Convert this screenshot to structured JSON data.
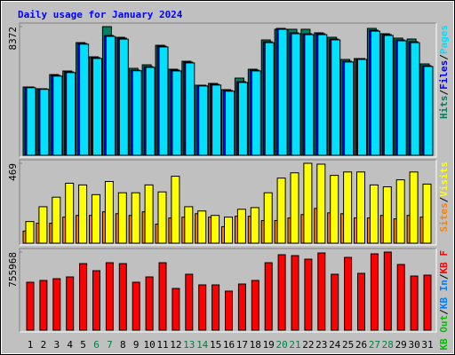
{
  "chart_data": [
    {
      "type": "bar",
      "title": "Daily usage for January 2024",
      "categories": [
        "1",
        "2",
        "3",
        "4",
        "5",
        "6",
        "7",
        "8",
        "9",
        "10",
        "11",
        "12",
        "13",
        "14",
        "15",
        "16",
        "17",
        "18",
        "19",
        "20",
        "21",
        "22",
        "23",
        "24",
        "25",
        "26",
        "27",
        "28",
        "29",
        "30",
        "31"
      ],
      "category_colors": [
        "#000000",
        "#000000",
        "#000000",
        "#000000",
        "#000000",
        "#008040",
        "#008040",
        "#000000",
        "#000000",
        "#000000",
        "#000000",
        "#000000",
        "#008040",
        "#008040",
        "#000000",
        "#000000",
        "#000000",
        "#000000",
        "#000000",
        "#008040",
        "#008040",
        "#000000",
        "#000000",
        "#000000",
        "#000000",
        "#000000",
        "#008040",
        "#008040",
        "#000000",
        "#000000",
        "#000000"
      ],
      "legend_separator": "/",
      "ylim": [
        0,
        8372
      ],
      "yticks": [
        8372
      ],
      "series": [
        {
          "name": "Pages",
          "color": "#00e0ff",
          "values": [
            4400,
            4290,
            5150,
            5380,
            7230,
            6300,
            7740,
            7560,
            5500,
            5720,
            7050,
            5490,
            6010,
            4510,
            4570,
            4170,
            4740,
            5490,
            7330,
            8200,
            7910,
            7850,
            7850,
            7510,
            6070,
            6240,
            8080,
            7800,
            7450,
            7330,
            5780
          ]
        },
        {
          "name": "Files",
          "color": "#0000ff",
          "values": [
            4446,
            4331,
            5196,
            5427,
            7275,
            6352,
            7795,
            7622,
            5543,
            5774,
            7102,
            5543,
            6063,
            4561,
            4619,
            4215,
            4792,
            5543,
            7391,
            8257,
            7968,
            7910,
            7910,
            7564,
            6120,
            6294,
            8141,
            7853,
            7506,
            7391,
            5831
          ]
        },
        {
          "name": "Hits",
          "color": "#008060",
          "values": [
            4446,
            4331,
            5254,
            5485,
            7333,
            6409,
            8372,
            7679,
            5658,
            5889,
            7159,
            5601,
            6120,
            4561,
            4677,
            4273,
            5023,
            5601,
            7506,
            8200,
            8200,
            8200,
            7968,
            7679,
            6236,
            6294,
            8257,
            7910,
            7622,
            7564,
            5947
          ]
        }
      ]
    },
    {
      "type": "bar",
      "legend_separator": "/",
      "ylim": [
        0,
        469
      ],
      "yticks": [
        469
      ],
      "series": [
        {
          "name": "Visits",
          "color": "#ffff00",
          "values": [
            127,
            214,
            270,
            352,
            342,
            285,
            362,
            296,
            296,
            342,
            301,
            393,
            214,
            189,
            163,
            153,
            199,
            209,
            296,
            382,
            413,
            469,
            464,
            398,
            418,
            418,
            342,
            331,
            372,
            418,
            347
          ]
        },
        {
          "name": "Sites",
          "color": "#ff8000",
          "values": [
            71,
            117,
            117,
            153,
            163,
            163,
            184,
            173,
            163,
            184,
            112,
            148,
            153,
            173,
            153,
            97,
            158,
            158,
            133,
            133,
            148,
            168,
            204,
            178,
            173,
            148,
            148,
            163,
            143,
            163,
            153
          ]
        }
      ]
    },
    {
      "type": "bar",
      "legend_separator": "/",
      "ylim": [
        0,
        755968
      ],
      "yticks": [
        755968
      ],
      "series": [
        {
          "name": "KB F",
          "color": "#ff0000",
          "values": [
            463887,
            481068,
            498249,
            515430,
            644288,
            575564,
            652878,
            644288,
            463887,
            515430,
            652878,
            403754,
            541202,
            438116,
            438116,
            377982,
            446706,
            481068,
            652878,
            730193,
            721602,
            687240,
            747378,
            541202,
            704421,
            549792,
            738787,
            755968,
            635697,
            524021,
            532611
          ]
        },
        {
          "name": "KB In",
          "color": "#0080ff",
          "values": [
            null,
            null,
            null,
            null,
            null,
            null,
            null,
            null,
            null,
            null,
            null,
            null,
            null,
            null,
            null,
            null,
            null,
            null,
            null,
            null,
            null,
            null,
            null,
            null,
            null,
            null,
            null,
            null,
            null,
            null,
            null
          ]
        },
        {
          "name": "KB Out",
          "color": "#00c000",
          "values": [
            null,
            null,
            null,
            null,
            null,
            null,
            null,
            null,
            null,
            null,
            null,
            null,
            null,
            null,
            null,
            null,
            null,
            null,
            null,
            null,
            null,
            null,
            null,
            null,
            null,
            null,
            null,
            null,
            null,
            null,
            null
          ]
        }
      ]
    }
  ]
}
